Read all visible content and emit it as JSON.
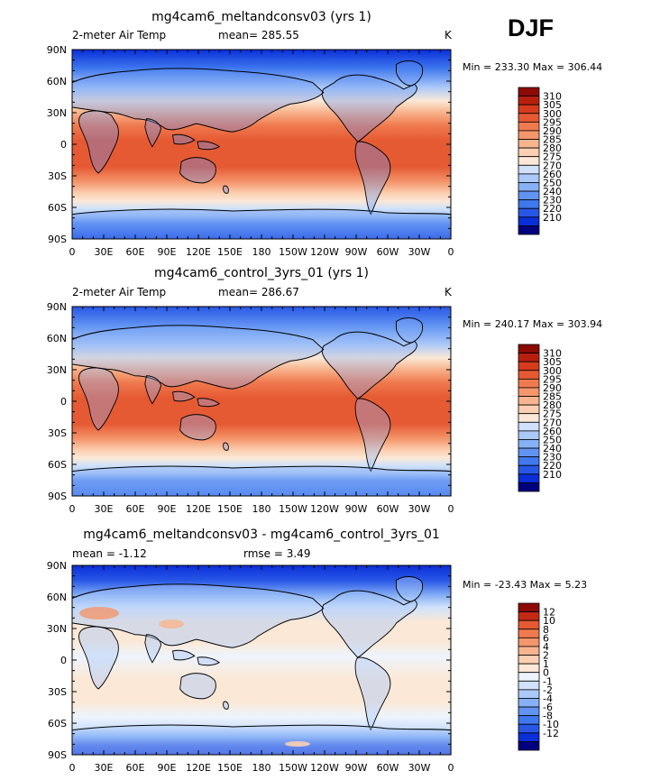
{
  "figure": {
    "season": "DJF"
  },
  "colors": {
    "abs_levels": [
      "#00007f",
      "#0a2fd9",
      "#2857e6",
      "#3f78ef",
      "#6193f3",
      "#87b0f6",
      "#abc9f8",
      "#cfe1fb",
      "#fbe8d6",
      "#fbd0b2",
      "#f8b48e",
      "#f4966c",
      "#f07a4f",
      "#e65a33",
      "#d63b1e",
      "#b8200e",
      "#8c0a05"
    ],
    "diff_levels": [
      "#00007f",
      "#0a2fd9",
      "#2857e6",
      "#3f78ef",
      "#6193f3",
      "#87b0f6",
      "#abc9f8",
      "#cfe1fb",
      "#eef4fd",
      "#fbe8d6",
      "#fbd0b2",
      "#f8b48e",
      "#f4966c",
      "#f07a4f",
      "#e65a33",
      "#c42a13",
      "#8c0a05"
    ],
    "land_outline": "#000000"
  },
  "chart_data": [
    {
      "type": "heatmap",
      "title": "mg4cam6_meltandconsv03 (yrs 1)",
      "variable_label": "2-meter Air Temp",
      "stat_text": "mean=  285.55",
      "units": "K",
      "range_text": "Min = 233.30 Max = 306.44",
      "lat_ticks": [
        "90N",
        "60N",
        "30N",
        "0",
        "30S",
        "60S",
        "90S"
      ],
      "lon_ticks": [
        "0",
        "30E",
        "60E",
        "90E",
        "120E",
        "150E",
        "180",
        "150W",
        "120W",
        "90W",
        "60W",
        "30W",
        "0"
      ],
      "colorbar_labels": [
        "310",
        "305",
        "300",
        "295",
        "290",
        "285",
        "280",
        "275",
        "270",
        "260",
        "250",
        "240",
        "230",
        "220",
        "210"
      ],
      "field": "absolute",
      "min": 233.3,
      "max": 306.44,
      "mean": 285.55
    },
    {
      "type": "heatmap",
      "title": "mg4cam6_control_3yrs_01 (yrs 1)",
      "variable_label": "2-meter Air Temp",
      "stat_text": "mean=  286.67",
      "units": "K",
      "range_text": "Min = 240.17 Max = 303.94",
      "lat_ticks": [
        "90N",
        "60N",
        "30N",
        "0",
        "30S",
        "60S",
        "90S"
      ],
      "lon_ticks": [
        "0",
        "30E",
        "60E",
        "90E",
        "120E",
        "150E",
        "180",
        "150W",
        "120W",
        "90W",
        "60W",
        "30W",
        "0"
      ],
      "colorbar_labels": [
        "310",
        "305",
        "300",
        "295",
        "290",
        "285",
        "280",
        "275",
        "270",
        "260",
        "250",
        "240",
        "230",
        "220",
        "210"
      ],
      "field": "absolute",
      "min": 240.17,
      "max": 303.94,
      "mean": 286.67
    },
    {
      "type": "heatmap",
      "title": "mg4cam6_meltandconsv03 - mg4cam6_control_3yrs_01",
      "variable_label": "",
      "stat_text": "mean =   -1.12",
      "rmse_text": "rmse =    3.49",
      "units": "",
      "range_text": "Min = -23.43 Max =    5.23",
      "lat_ticks": [
        "90N",
        "60N",
        "30N",
        "0",
        "30S",
        "60S",
        "90S"
      ],
      "lon_ticks": [
        "0",
        "30E",
        "60E",
        "90E",
        "120E",
        "150E",
        "180",
        "150W",
        "120W",
        "90W",
        "60W",
        "30W",
        "0"
      ],
      "colorbar_labels": [
        "12",
        "10",
        "8",
        "6",
        "4",
        "2",
        "1",
        "0",
        "-1",
        "-2",
        "-4",
        "-6",
        "-8",
        "-10",
        "-12"
      ],
      "field": "difference",
      "min": -23.43,
      "max": 5.23,
      "mean": -1.12,
      "rmse": 3.49
    }
  ]
}
